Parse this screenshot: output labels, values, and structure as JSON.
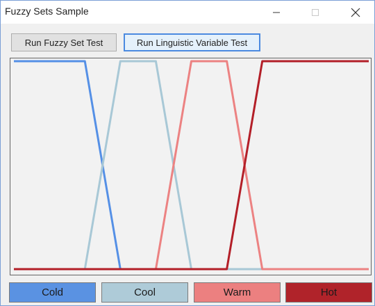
{
  "window": {
    "title": "Fuzzy Sets Sample"
  },
  "toolbar": {
    "fuzzy_test_label": "Run Fuzzy Set Test",
    "linguistic_test_label": "Run Linguistic Variable Test"
  },
  "chart_data": {
    "type": "line",
    "xlim": [
      0,
      100
    ],
    "ylim": [
      0,
      1
    ],
    "grid": false,
    "series": [
      {
        "name": "Cold",
        "color": "#5590e6",
        "x": [
          0,
          20,
          30,
          100
        ],
        "y": [
          1,
          1,
          0,
          0
        ]
      },
      {
        "name": "Cool",
        "color": "#a8c8d6",
        "x": [
          0,
          20,
          30,
          40,
          50,
          100
        ],
        "y": [
          0,
          0,
          1,
          1,
          0,
          0
        ]
      },
      {
        "name": "Warm",
        "color": "#ec8282",
        "x": [
          0,
          40,
          50,
          60,
          70,
          100
        ],
        "y": [
          0,
          0,
          1,
          1,
          0,
          0
        ]
      },
      {
        "name": "Hot",
        "color": "#b31f28",
        "x": [
          0,
          60,
          70,
          100
        ],
        "y": [
          0,
          0,
          1,
          1
        ]
      }
    ]
  },
  "legend": [
    {
      "label": "Cold",
      "color": "#5a92e2"
    },
    {
      "label": "Cool",
      "color": "#aecbd8"
    },
    {
      "label": "Warm",
      "color": "#ec8080"
    },
    {
      "label": "Hot",
      "color": "#b0232a"
    }
  ]
}
